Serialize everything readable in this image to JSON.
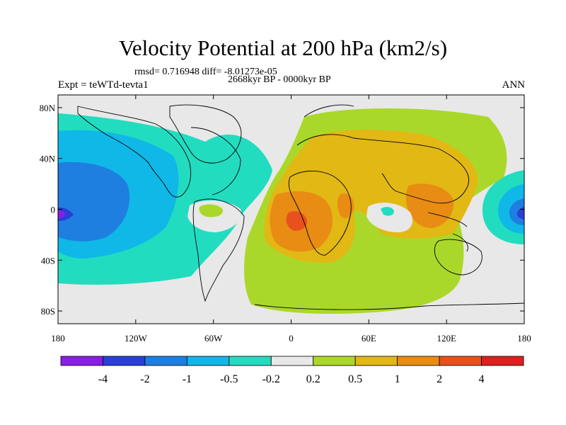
{
  "title": "Velocity Potential at 200 hPa (km2/s)",
  "stats_line": "rmsd= 0.716948 diff= -8.01273e-05",
  "period": "2668kyr BP - 0000kyr BP",
  "experiment": "Expt = teWTd-tevta1",
  "season": "ANN",
  "map": {
    "lat_ticks": [
      "80N",
      "40N",
      "0",
      "40S",
      "80S"
    ],
    "lat_values": [
      80,
      40,
      0,
      -40,
      -80
    ],
    "lon_ticks": [
      "180",
      "120W",
      "60W",
      "0",
      "60E",
      "120E",
      "180"
    ],
    "lon_values": [
      -180,
      -120,
      -60,
      0,
      60,
      120,
      180
    ]
  },
  "colorbar": {
    "labels": [
      "-4",
      "-2",
      "-1",
      "-0.5",
      "-0.2",
      "0.2",
      "0.5",
      "1",
      "2",
      "4"
    ],
    "colors": [
      "#8a1ee8",
      "#2a3fd6",
      "#1f7fe0",
      "#10b8e8",
      "#22dcc0",
      "#e8e8e8",
      "#aad82a",
      "#e2b814",
      "#e88c14",
      "#e8501e",
      "#e01e1e"
    ]
  }
}
